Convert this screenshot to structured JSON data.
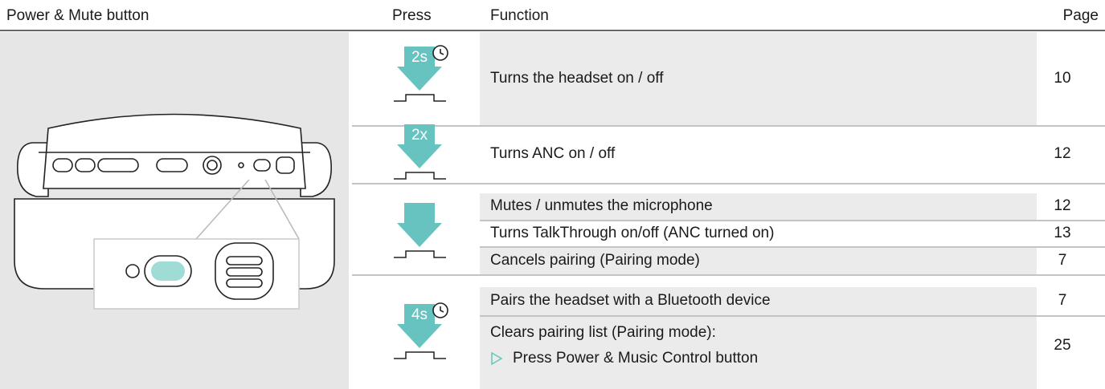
{
  "header": {
    "columns": [
      "Power & Mute button",
      "Press",
      "Function",
      "Page"
    ]
  },
  "table": {
    "rows": [
      {
        "press": "2s",
        "functions": [
          {
            "text": "Turns the headset on / off",
            "page": "10"
          }
        ]
      },
      {
        "press": "2x",
        "functions": [
          {
            "text": "Turns ANC on / off",
            "page": "12"
          }
        ]
      },
      {
        "functions": [
          {
            "text": "Mutes / unmutes the microphone",
            "page": "12"
          },
          {
            "text": "Turns TalkThrough on/off (ANC turned on)",
            "page": "13"
          },
          {
            "text": "Cancels pairing (Pairing mode)",
            "page": "7"
          }
        ]
      },
      {
        "press": "4s",
        "functions": [
          {
            "text": "Pairs the headset with a Bluetooth device",
            "page": "7"
          },
          {
            "text": "Clears pairing list (Pairing mode):",
            "note": "Press Power & Music Control button",
            "page": "25"
          }
        ]
      }
    ]
  }
}
